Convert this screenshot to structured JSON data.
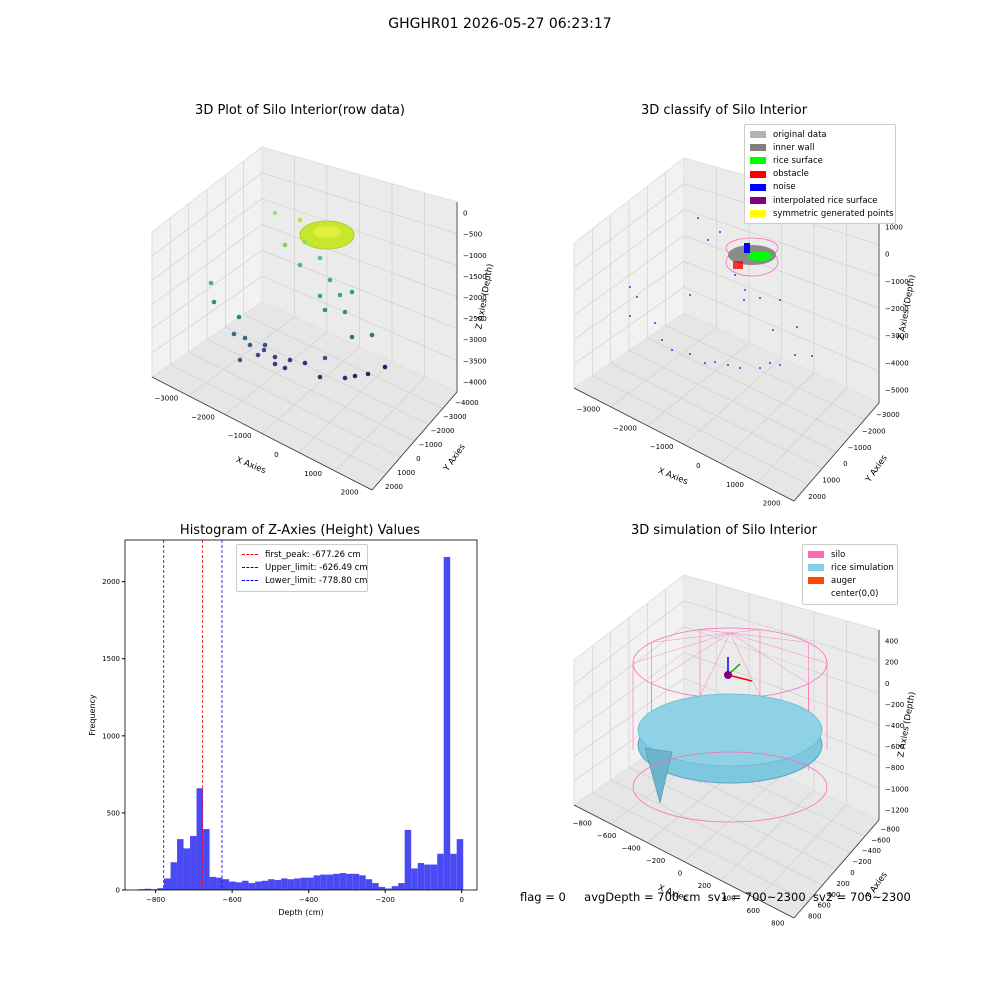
{
  "figure": {
    "title": "GHGHR01 2026-05-27 06:23:17",
    "footer": {
      "flag": "flag = 0",
      "avg_depth": "avgDepth = 700 cm",
      "sv1": "sv1 = 700~2300",
      "sv2": "sv2 = 700~2300"
    }
  },
  "panels": {
    "raw": {
      "title": "3D Plot of Silo Interior(row data)",
      "xlabel": "X Axies",
      "ylabel": "Y Axies",
      "zlabel": "Z Axies (Depth)",
      "xticks": [
        "−3000",
        "−2000",
        "−1000",
        "0",
        "1000",
        "2000"
      ],
      "yticks": [
        "2000",
        "1000",
        "0",
        "−1000",
        "−2000",
        "−3000",
        "−4000"
      ],
      "zticks": [
        "0",
        "−500",
        "−1000",
        "−1500",
        "−2000",
        "−2500",
        "−3000",
        "−3500",
        "−4000"
      ]
    },
    "classify": {
      "title": "3D classify of Silo Interior",
      "xlabel": "X Axies",
      "ylabel": "Y Axies",
      "zlabel": "Z Axies (Depth)",
      "xticks": [
        "−3000",
        "−2000",
        "−1000",
        "0",
        "1000",
        "2000"
      ],
      "yticks": [
        "2000",
        "1000",
        "0",
        "−1000",
        "−2000",
        "−3000"
      ],
      "zticks": [
        "1000",
        "0",
        "−1000",
        "−2000",
        "−3000",
        "−4000",
        "−5000"
      ],
      "legend": [
        {
          "label": "original data",
          "color": "#b3b3b3"
        },
        {
          "label": "inner wall",
          "color": "#808080"
        },
        {
          "label": "rice surface",
          "color": "#00ff00"
        },
        {
          "label": "obstacle",
          "color": "#ff0000"
        },
        {
          "label": "noise",
          "color": "#0000ff"
        },
        {
          "label": "interpolated rice surface",
          "color": "#800080"
        },
        {
          "label": "symmetric generated points",
          "color": "#ffff00"
        }
      ]
    },
    "histogram": {
      "title": "Histogram of Z-Axies (Height) Values",
      "legend": [
        {
          "label": "first_peak: -677.26 cm",
          "color": "#ff0000"
        },
        {
          "label": "Upper_limit: -626.49 cm",
          "color": "#0000ff"
        },
        {
          "label": "Lower_limit: -778.80 cm",
          "color": "#0000ff"
        }
      ]
    },
    "simulation": {
      "title": "3D simulation of Silo Interior",
      "xlabel": "X Axies",
      "ylabel": "Y Axies",
      "zlabel": "Z Axies (Depth)",
      "xticks": [
        "−800",
        "−600",
        "−400",
        "−200",
        "0",
        "200",
        "400",
        "600",
        "800"
      ],
      "yticks": [
        "800",
        "600",
        "400",
        "200",
        "0",
        "−200",
        "−400",
        "−600",
        "−800"
      ],
      "zticks": [
        "400",
        "200",
        "0",
        "−200",
        "−400",
        "−600",
        "−800",
        "−1000",
        "−1200"
      ],
      "legend": [
        {
          "label": "silo",
          "color": "#ff69b4"
        },
        {
          "label": "rice simulation",
          "color": "#87ceeb"
        },
        {
          "label": "auger",
          "color": "#ff4500"
        },
        {
          "label": "center(0,0)",
          "color": "#ffffff"
        }
      ]
    }
  },
  "chart_data": {
    "type": "bar",
    "title": "Histogram of Z-Axies (Height) Values",
    "xlabel": "Depth (cm)",
    "ylabel": "Frequency",
    "xlim": [
      -880,
      40
    ],
    "ylim": [
      0,
      2270
    ],
    "xticks": [
      "−800",
      "−600",
      "−400",
      "−200",
      "0"
    ],
    "yticks": [
      "0",
      "500",
      "1000",
      "1500",
      "2000"
    ],
    "bin_width": 17,
    "bin_starts": [
      -846,
      -829,
      -812,
      -795,
      -778,
      -761,
      -744,
      -727,
      -710,
      -693,
      -676,
      -659,
      -642,
      -625,
      -608,
      -591,
      -574,
      -557,
      -540,
      -523,
      -506,
      -489,
      -472,
      -455,
      -438,
      -421,
      -404,
      -387,
      -370,
      -353,
      -336,
      -319,
      -302,
      -285,
      -268,
      -251,
      -234,
      -217,
      -200,
      -183,
      -166,
      -149,
      -132,
      -115,
      -98,
      -81,
      -64,
      -47,
      -30,
      -13
    ],
    "values": [
      5,
      8,
      5,
      12,
      75,
      180,
      330,
      270,
      350,
      660,
      395,
      85,
      80,
      70,
      55,
      50,
      60,
      45,
      55,
      60,
      70,
      65,
      75,
      70,
      75,
      80,
      80,
      95,
      100,
      100,
      105,
      110,
      105,
      105,
      95,
      70,
      45,
      20,
      10,
      25,
      45,
      390,
      140,
      175,
      165,
      165,
      235,
      2160,
      235,
      330
    ],
    "reference_lines": [
      {
        "name": "first_peak",
        "x": -677.26,
        "color": "#ff0000"
      },
      {
        "name": "Upper_limit",
        "x": -626.49,
        "color": "#0000ff"
      },
      {
        "name": "Lower_limit",
        "x": -778.8,
        "color": "#0000ff"
      }
    ],
    "bar_color": "#4a4af5"
  }
}
